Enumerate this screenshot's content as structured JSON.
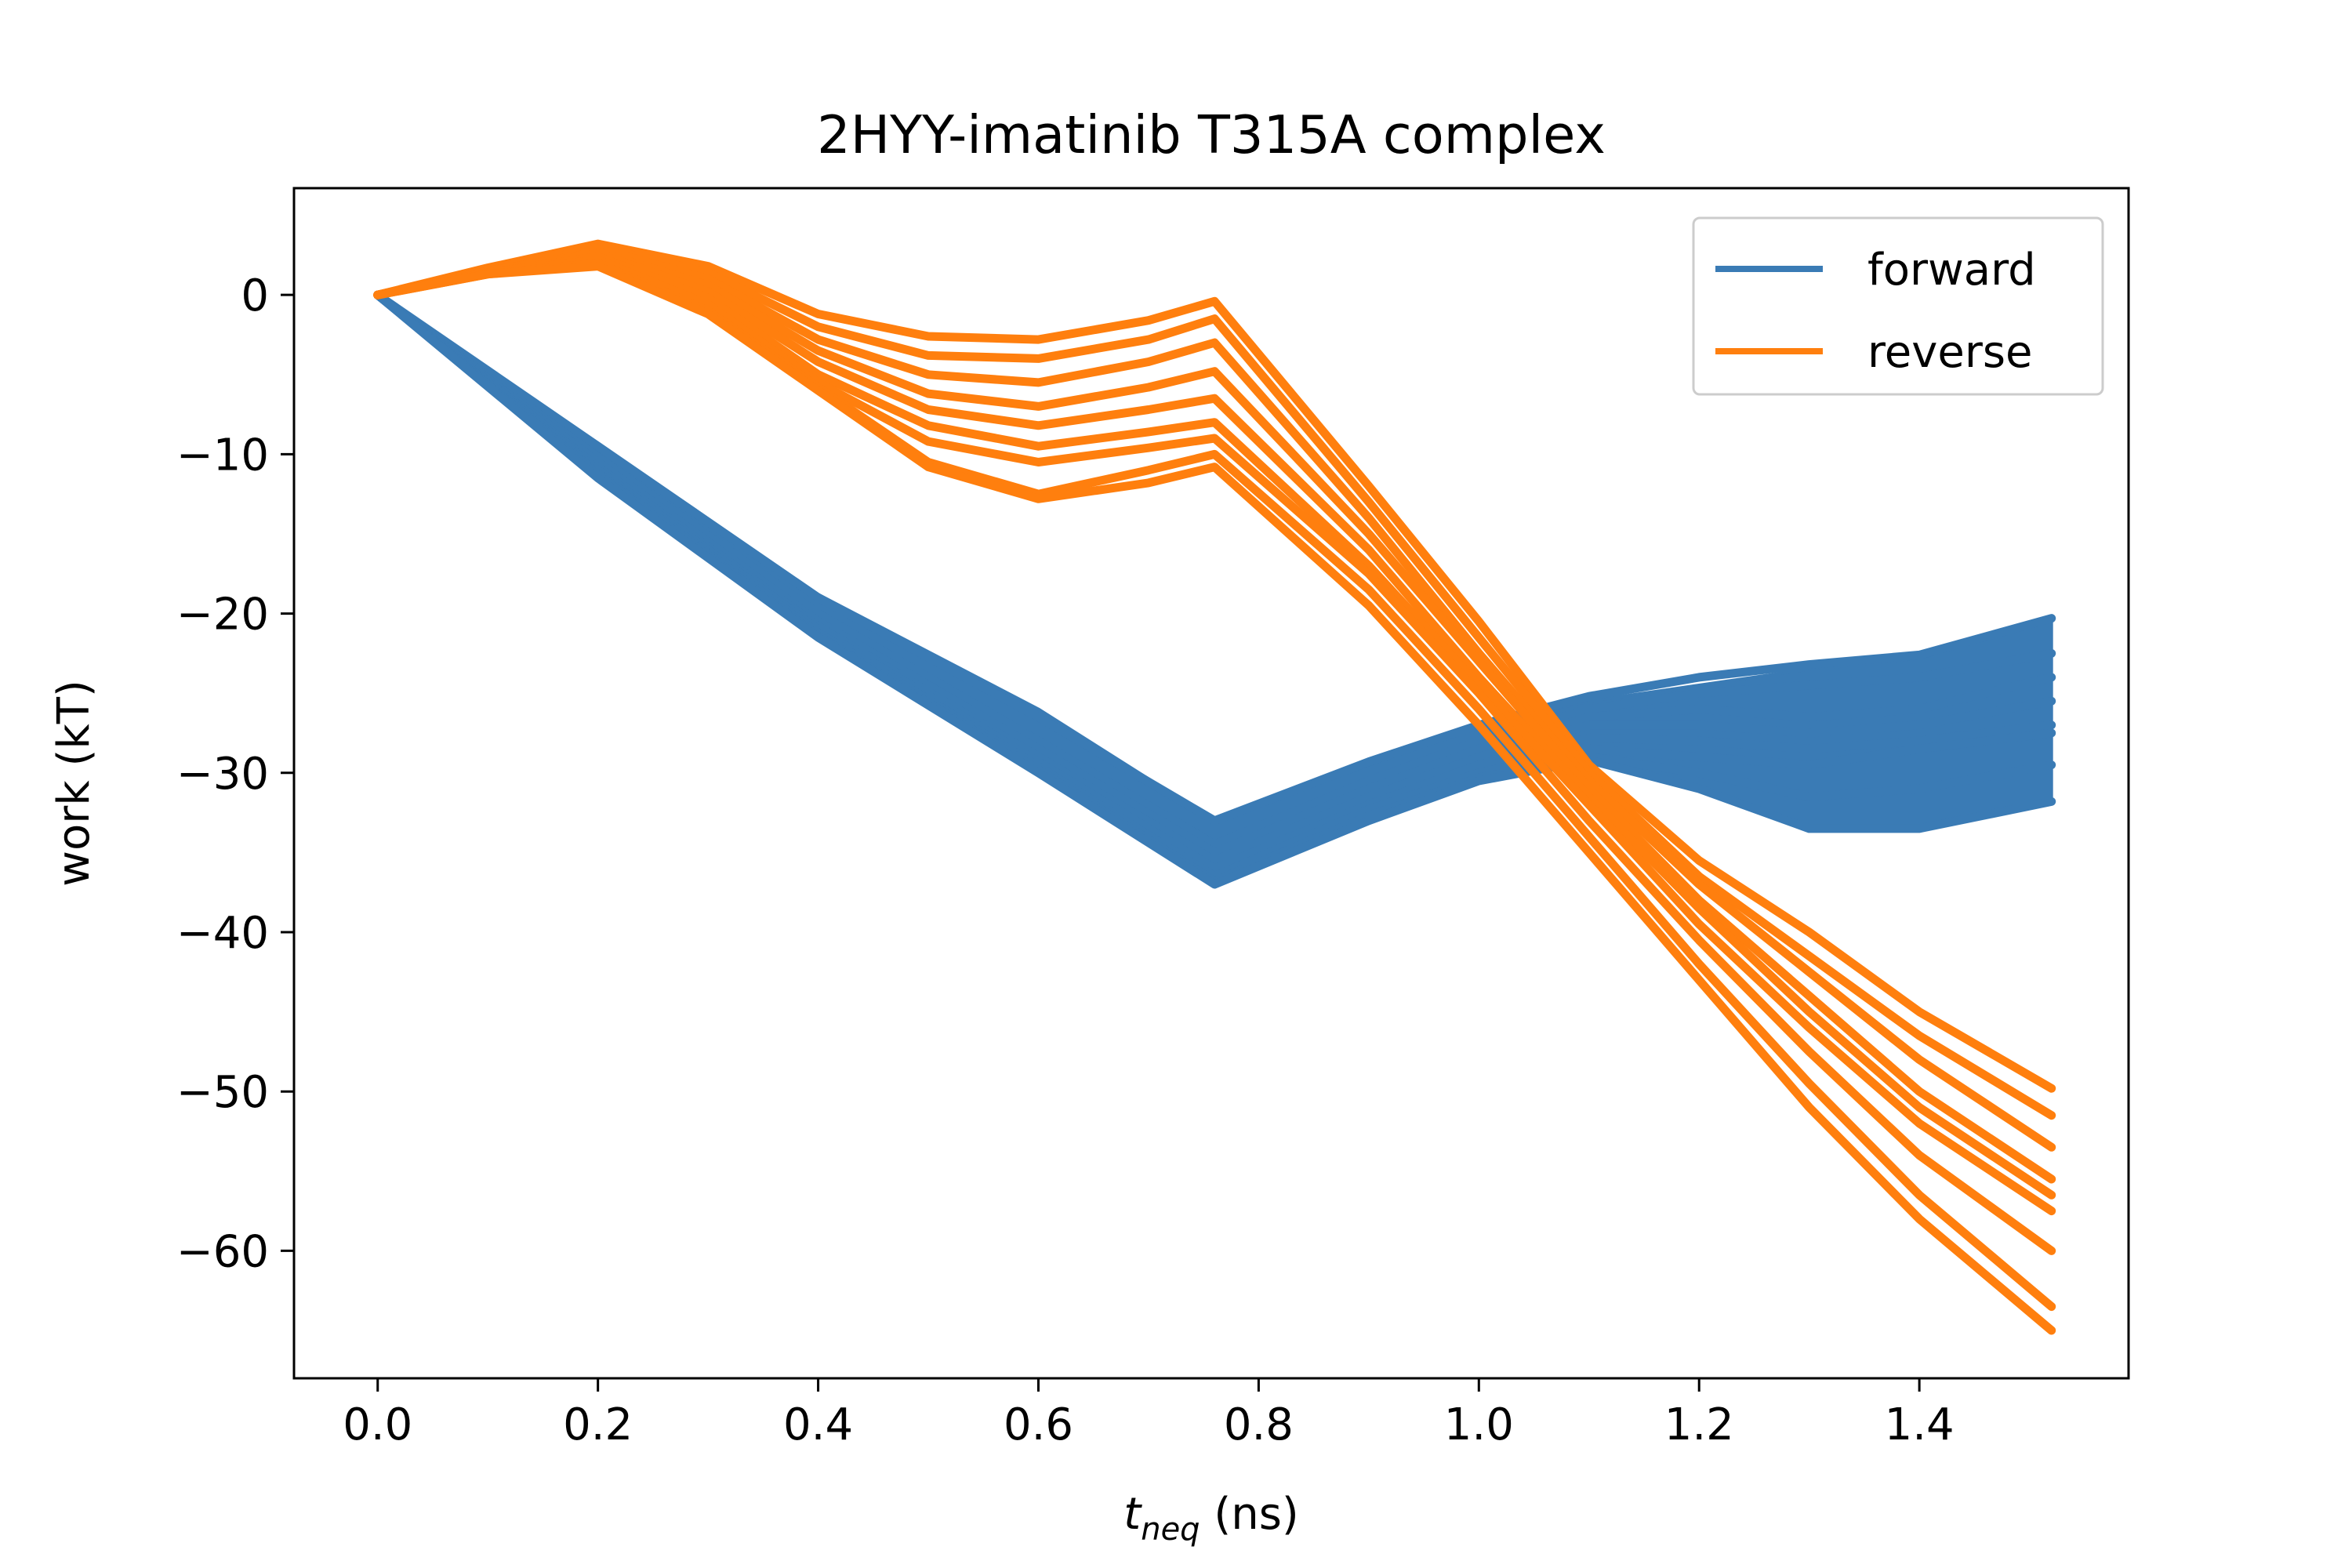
{
  "chart_data": {
    "type": "line",
    "title": "2HYY-imatinib T315A complex",
    "xlabel_var": "t",
    "xlabel_sub": "neq",
    "xlabel_unit": " (ns)",
    "ylabel": "work (kT)",
    "xlim": [
      -0.076,
      1.59
    ],
    "ylim": [
      -68,
      6.7
    ],
    "xticks": [
      0.0,
      0.2,
      0.4,
      0.6,
      0.8,
      1.0,
      1.2,
      1.4
    ],
    "xtick_labels": [
      "0.0",
      "0.2",
      "0.4",
      "0.6",
      "0.8",
      "1.0",
      "1.2",
      "1.4"
    ],
    "yticks": [
      0,
      -10,
      -20,
      -30,
      -40,
      -50,
      -60
    ],
    "ytick_labels": [
      "0",
      "−10",
      "−20",
      "−30",
      "−40",
      "−50",
      "−60"
    ],
    "grid": false,
    "legend_position": "upper right",
    "colors": {
      "forward": "#3a7bb5",
      "reverse": "#ff7f0e"
    },
    "series": [
      {
        "name": "forward",
        "x": [
          0.0,
          0.2,
          0.4,
          0.6,
          0.76,
          0.9,
          1.0,
          1.1,
          1.2,
          1.3,
          1.4,
          1.52
        ],
        "envelope_upper": [
          0.0,
          -9.3,
          -18.8,
          -26.0,
          -33.0,
          -29.5,
          -27.0,
          -25.5,
          -24.5,
          -23.5,
          -22.8,
          -20.3
        ],
        "envelope_lower": [
          0.0,
          -11.5,
          -21.5,
          -30.0,
          -37.0,
          -33.0,
          -30.5,
          -29.0,
          -31.0,
          -33.5,
          -33.5,
          -31.8
        ],
        "curves": [
          {
            "y": [
              0.0,
              -9.5,
              -19.0,
              -26.5,
              -33.0,
              -29.3,
              -27.0,
              -25.2,
              -24.0,
              -23.2,
              -22.6,
              -20.3
            ]
          },
          {
            "y": [
              0.0,
              -10.2,
              -20.0,
              -28.0,
              -34.5,
              -30.5,
              -28.0,
              -26.0,
              -25.0,
              -24.5,
              -24.0,
              -22.5
            ]
          },
          {
            "y": [
              0.0,
              -10.5,
              -20.5,
              -28.5,
              -35.0,
              -31.0,
              -28.5,
              -26.5,
              -26.0,
              -26.5,
              -26.0,
              -24.0
            ]
          },
          {
            "y": [
              0.0,
              -10.8,
              -20.8,
              -29.0,
              -35.5,
              -31.5,
              -29.0,
              -27.0,
              -27.0,
              -27.5,
              -27.0,
              -25.5
            ]
          },
          {
            "y": [
              0.0,
              -11.0,
              -21.0,
              -29.3,
              -36.0,
              -32.0,
              -29.5,
              -27.8,
              -28.0,
              -28.5,
              -28.0,
              -27.0
            ]
          },
          {
            "y": [
              0.0,
              -11.2,
              -21.2,
              -29.6,
              -36.5,
              -32.3,
              -30.0,
              -28.5,
              -29.0,
              -29.5,
              -28.5,
              -27.5
            ]
          },
          {
            "y": [
              0.0,
              -11.3,
              -21.4,
              -29.8,
              -36.8,
              -32.7,
              -30.3,
              -29.0,
              -30.0,
              -31.5,
              -31.0,
              -29.5
            ]
          },
          {
            "y": [
              0.0,
              -11.5,
              -21.5,
              -30.0,
              -37.0,
              -33.0,
              -30.5,
              -29.2,
              -31.0,
              -33.5,
              -33.5,
              -31.8
            ]
          }
        ]
      },
      {
        "name": "reverse",
        "x": [
          0.0,
          0.1,
          0.2,
          0.3,
          0.4,
          0.5,
          0.6,
          0.7,
          0.76,
          0.9,
          1.0,
          1.1,
          1.2,
          1.3,
          1.4,
          1.52
        ],
        "curves": [
          {
            "y": [
              0.0,
              1.7,
              3.2,
              1.8,
              -1.2,
              -2.6,
              -2.8,
              -1.6,
              -0.4,
              -12.0,
              -20.5,
              -29.5,
              -35.5,
              -40.0,
              -45.0,
              -49.8
            ]
          },
          {
            "y": [
              0.0,
              1.6,
              3.0,
              1.4,
              -2.0,
              -3.8,
              -4.0,
              -2.8,
              -1.5,
              -13.0,
              -21.5,
              -30.0,
              -36.5,
              -41.5,
              -46.5,
              -51.5
            ]
          },
          {
            "y": [
              0.0,
              1.6,
              2.9,
              1.0,
              -2.8,
              -5.0,
              -5.5,
              -4.2,
              -3.0,
              -14.0,
              -22.5,
              -30.5,
              -37.0,
              -42.5,
              -48.0,
              -53.5
            ]
          },
          {
            "y": [
              0.0,
              1.5,
              2.7,
              0.6,
              -3.5,
              -6.2,
              -7.0,
              -5.8,
              -4.8,
              -15.0,
              -23.0,
              -31.0,
              -38.0,
              -44.0,
              -50.0,
              -55.5
            ]
          },
          {
            "y": [
              0.0,
              1.5,
              2.6,
              0.2,
              -4.2,
              -7.2,
              -8.2,
              -7.2,
              -6.5,
              -16.0,
              -24.0,
              -31.5,
              -38.5,
              -45.0,
              -51.0,
              -56.5
            ]
          },
          {
            "y": [
              0.0,
              1.4,
              2.4,
              -0.2,
              -5.0,
              -8.2,
              -9.5,
              -8.6,
              -8.0,
              -17.0,
              -24.5,
              -32.0,
              -39.5,
              -46.0,
              -52.0,
              -57.5
            ]
          },
          {
            "y": [
              0.0,
              1.4,
              2.2,
              -0.6,
              -5.5,
              -9.2,
              -10.5,
              -9.6,
              -9.0,
              -17.5,
              -25.0,
              -33.0,
              -40.5,
              -47.5,
              -54.0,
              -60.0
            ]
          },
          {
            "y": [
              0.0,
              1.3,
              2.0,
              -1.0,
              -5.8,
              -10.5,
              -12.5,
              -11.0,
              -10.0,
              -18.5,
              -26.0,
              -34.0,
              -42.0,
              -49.5,
              -56.5,
              -63.5
            ]
          },
          {
            "y": [
              0.0,
              1.3,
              1.8,
              -1.2,
              -6.0,
              -10.8,
              -12.8,
              -11.8,
              -10.8,
              -19.5,
              -27.0,
              -35.0,
              -43.0,
              -51.0,
              -58.0,
              -65.0
            ]
          }
        ]
      }
    ]
  }
}
